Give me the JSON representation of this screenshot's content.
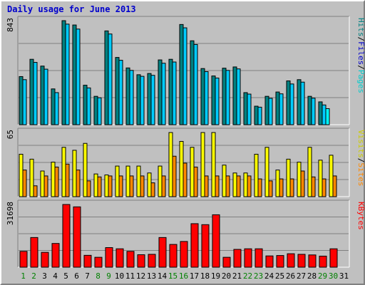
{
  "window": {
    "title": "Daily usage for June 2013"
  },
  "colors": {
    "background": "#c0c0c0",
    "hits": "#008080",
    "files": "#00ccff",
    "pages": "#00ffff",
    "visits": "#ffff00",
    "sites": "#ff8800",
    "kbytes": "#ff0000",
    "weekend_day": "#008000",
    "weekday_day": "#000000",
    "title": "#0000cc"
  },
  "chart_data": {
    "type": "bar",
    "title": "Daily usage for June 2013",
    "categories": [
      "1",
      "2",
      "3",
      "4",
      "5",
      "6",
      "7",
      "8",
      "9",
      "10",
      "11",
      "12",
      "13",
      "14",
      "15",
      "16",
      "17",
      "18",
      "19",
      "20",
      "21",
      "22",
      "23",
      "24",
      "25",
      "26",
      "27",
      "28",
      "29",
      "30",
      "31"
    ],
    "weekend_days": [
      "1",
      "2",
      "8",
      "9",
      "15",
      "16",
      "22",
      "23",
      "29",
      "30"
    ],
    "panels": [
      {
        "name": "hits-files",
        "max_label": "843",
        "ylim": [
          0,
          843
        ],
        "legend": [
          {
            "text": "Pages",
            "color": "#00cccc"
          },
          {
            "text": "/",
            "color": "#000000"
          },
          {
            "text": "Files",
            "color": "#0000cc"
          },
          {
            "text": "/",
            "color": "#000000"
          },
          {
            "text": "Hits",
            "color": "#008080"
          }
        ],
        "series": [
          {
            "name": "Hits",
            "color": "#008080",
            "values": [
              390,
              530,
              475,
              290,
              843,
              808,
              320,
              230,
              760,
              545,
              460,
              405,
              415,
              525,
              530,
              812,
              680,
              455,
              395,
              458,
              468,
              260,
              150,
              230,
              265,
              355,
              365,
              230,
              185,
              0
            ]
          },
          {
            "name": "Files",
            "color": "#00ccff",
            "values": [
              365,
              505,
              450,
              260,
              815,
              775,
              298,
              218,
              735,
              522,
              440,
              392,
              400,
              498,
              508,
              785,
              650,
              430,
              378,
              440,
              452,
              248,
              142,
              214,
              250,
              330,
              345,
              215,
              160,
              0
            ]
          },
          {
            "name": "Pages",
            "color": "#00ffff",
            "values": [
              0,
              0,
              0,
              0,
              0,
              0,
              0,
              0,
              0,
              0,
              0,
              0,
              0,
              0,
              0,
              0,
              0,
              0,
              0,
              0,
              0,
              0,
              0,
              0,
              0,
              0,
              0,
              0,
              130,
              0
            ]
          }
        ]
      },
      {
        "name": "visits-sites",
        "max_label": "65",
        "ylim": [
          0,
          65
        ],
        "legend": [
          {
            "text": "Sites",
            "color": "#ff8800"
          },
          {
            "text": "/",
            "color": "#000000"
          },
          {
            "text": "Visits",
            "color": "#cccc00"
          }
        ],
        "series": [
          {
            "name": "Visits",
            "color": "#ffff00",
            "values": [
              43,
              38,
              26,
              35,
              50,
              47,
              54,
              23,
              22,
              31,
              31,
              31,
              24,
              31,
              65,
              56,
              50,
              65,
              65,
              32,
              24,
              24,
              43,
              50,
              27,
              38,
              35,
              50,
              37,
              42
            ]
          },
          {
            "name": "Sites",
            "color": "#ff8800",
            "values": [
              27,
              11,
              21,
              30,
              33,
              27,
              16,
              20,
              21,
              21,
              21,
              21,
              14,
              21,
              41,
              34,
              30,
              21,
              21,
              21,
              21,
              21,
              18,
              16,
              18,
              18,
              26,
              20,
              18,
              21
            ]
          }
        ]
      },
      {
        "name": "kbytes",
        "max_label": "31698",
        "ylim": [
          0,
          31698
        ],
        "legend": [
          {
            "text": "KBytes",
            "color": "#ff0000"
          }
        ],
        "series": [
          {
            "name": "KBytes",
            "color": "#ff0000",
            "values": [
              8000,
              15000,
              7500,
              12000,
              31698,
              30500,
              6000,
              5000,
              9900,
              9300,
              8000,
              6300,
              6500,
              15000,
              11500,
              13000,
              22000,
              21500,
              26500,
              5000,
              9000,
              9300,
              9300,
              5700,
              5900,
              6800,
              6500,
              6200,
              5600,
              9300
            ]
          }
        ]
      }
    ]
  }
}
